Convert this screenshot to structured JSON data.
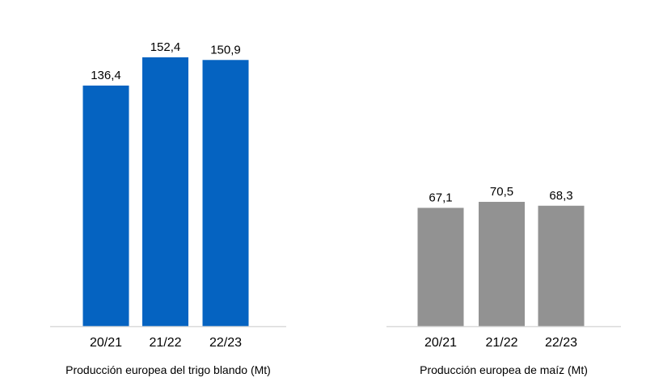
{
  "chart_data": [
    {
      "type": "bar",
      "categories": [
        "20/21",
        "21/22",
        "22/23"
      ],
      "values": [
        136.4,
        152.4,
        150.9
      ],
      "value_labels": [
        "136,4",
        "152,4",
        "150,9"
      ],
      "caption": "Producción europea del trigo blando (Mt)",
      "color": "#0563C1",
      "grid": false,
      "legend": "none"
    },
    {
      "type": "bar",
      "categories": [
        "20/21",
        "21/22",
        "22/23"
      ],
      "values": [
        67.1,
        70.5,
        68.3
      ],
      "value_labels": [
        "67,1",
        "70,5",
        "68,3"
      ],
      "caption": "Producción europea de maíz (Mt)",
      "color": "#929292",
      "grid": false,
      "legend": "none"
    }
  ],
  "axis_color": "#D9D9D9"
}
